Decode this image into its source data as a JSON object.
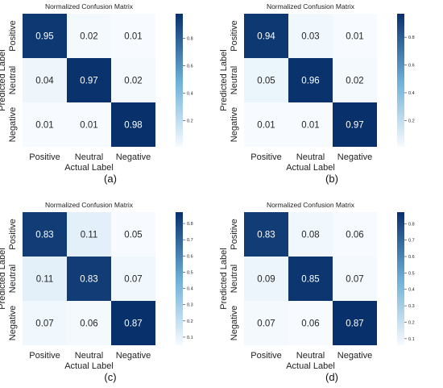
{
  "colors": {
    "cmap_low": "#f7fbff",
    "cmap_mid": "#6baed6",
    "cmap_high": "#08306b",
    "text_dark": "#262626",
    "text_light": "#ffffff"
  },
  "chart_data": [
    {
      "type": "heatmap",
      "panel_label": "(a)",
      "title": "Normalized Confusion Matrix",
      "xlabel": "Actual Label",
      "ylabel": "Predicted Label",
      "x_categories": [
        "Positive",
        "Neutral",
        "Negative"
      ],
      "y_categories": [
        "Positive",
        "Neutral",
        "Negative"
      ],
      "values": [
        [
          0.95,
          0.02,
          0.01
        ],
        [
          0.04,
          0.97,
          0.02
        ],
        [
          0.01,
          0.01,
          0.98
        ]
      ],
      "colorbar": {
        "range": [
          0.01,
          0.98
        ],
        "ticks": [
          0.2,
          0.4,
          0.6,
          0.8
        ]
      }
    },
    {
      "type": "heatmap",
      "panel_label": "(b)",
      "title": "Normalized Confusion Matrix",
      "xlabel": "Actual Label",
      "ylabel": "Predicted Label",
      "x_categories": [
        "Positive",
        "Neutral",
        "Negative"
      ],
      "y_categories": [
        "Positive",
        "Neutral",
        "Negative"
      ],
      "values": [
        [
          0.94,
          0.03,
          0.01
        ],
        [
          0.05,
          0.96,
          0.02
        ],
        [
          0.01,
          0.01,
          0.97
        ]
      ],
      "colorbar": {
        "range": [
          0.01,
          0.97
        ],
        "ticks": [
          0.2,
          0.4,
          0.6,
          0.8
        ]
      }
    },
    {
      "type": "heatmap",
      "panel_label": "(c)",
      "title": "Normalized Confusion Matrix",
      "xlabel": "Actual Label",
      "ylabel": "Predicted Label",
      "x_categories": [
        "Positive",
        "Neutral",
        "Negative"
      ],
      "y_categories": [
        "Positive",
        "Neutral",
        "Negative"
      ],
      "values": [
        [
          0.83,
          0.11,
          0.05
        ],
        [
          0.11,
          0.83,
          0.07
        ],
        [
          0.07,
          0.06,
          0.87
        ]
      ],
      "colorbar": {
        "range": [
          0.05,
          0.87
        ],
        "ticks": [
          0.1,
          0.2,
          0.3,
          0.4,
          0.5,
          0.6,
          0.7,
          0.8
        ]
      }
    },
    {
      "type": "heatmap",
      "panel_label": "(d)",
      "title": "Normalized Confusion Matrix",
      "xlabel": "Actual Label",
      "ylabel": "Predicted Label",
      "x_categories": [
        "Positive",
        "Neutral",
        "Negative"
      ],
      "y_categories": [
        "Positive",
        "Neutral",
        "Negative"
      ],
      "values": [
        [
          0.83,
          0.08,
          0.06
        ],
        [
          0.09,
          0.85,
          0.07
        ],
        [
          0.07,
          0.06,
          0.87
        ]
      ],
      "colorbar": {
        "range": [
          0.06,
          0.87
        ],
        "ticks": [
          0.1,
          0.2,
          0.3,
          0.4,
          0.5,
          0.6,
          0.7,
          0.8
        ]
      }
    }
  ]
}
